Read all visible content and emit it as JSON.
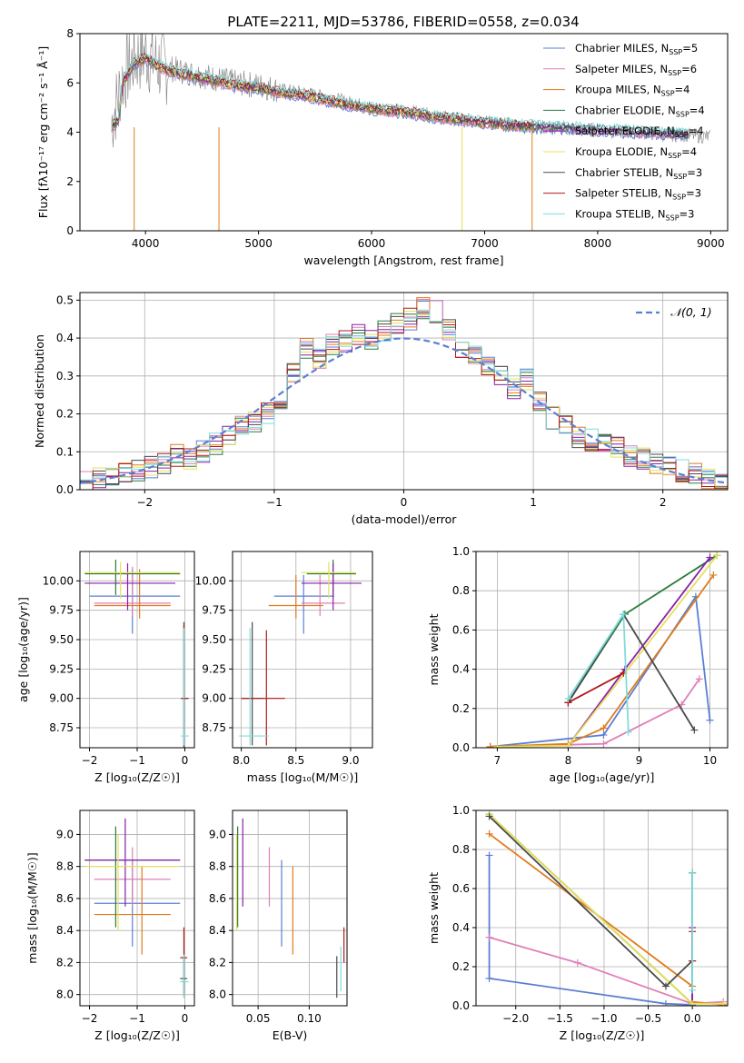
{
  "title": "PLATE=2211, MJD=53786, FIBERID=0558, z=0.034",
  "series": [
    {
      "name": "Chabrier MILES",
      "nssp": "5",
      "color": "#5b7fd3"
    },
    {
      "name": "Salpeter MILES",
      "nssp": "6",
      "color": "#e07fb8"
    },
    {
      "name": "Kroupa MILES",
      "nssp": "4",
      "color": "#e07b1c"
    },
    {
      "name": "Chabrier ELODIE",
      "nssp": "4",
      "color": "#2a7a3a"
    },
    {
      "name": "Salpeter ELODIE",
      "nssp": "4",
      "color": "#8a1fa8"
    },
    {
      "name": "Kroupa ELODIE",
      "nssp": "4",
      "color": "#e6e05a"
    },
    {
      "name": "Chabrier STELIB",
      "nssp": "3",
      "color": "#4a4a4a"
    },
    {
      "name": "Salpeter STELIB",
      "nssp": "3",
      "color": "#b21a1a"
    },
    {
      "name": "Kroupa STELIB",
      "nssp": "3",
      "color": "#7fdcdc"
    }
  ],
  "chart_data": [
    {
      "type": "line",
      "id": "spectrum",
      "xlabel": "wavelength [Angstrom, rest frame]",
      "ylabel": "Flux [fλ10⁻¹⁷ erg cm⁻² s⁻¹ Å⁻¹]",
      "xlim": [
        3420,
        9150
      ],
      "ylim": [
        0,
        8
      ],
      "xticks": [
        4000,
        5000,
        6000,
        7000,
        8000,
        9000
      ],
      "yticks": [
        0,
        2,
        4,
        6,
        8
      ],
      "data_color": "#808080",
      "data_x": [
        3700,
        3800,
        3900,
        4000,
        4100,
        4200,
        4400,
        4600,
        4800,
        5000,
        5200,
        5400,
        5600,
        5800,
        6000,
        6200,
        6400,
        6600,
        6800,
        7000,
        7200,
        7400,
        7600,
        7800,
        8000,
        8200,
        8400,
        8600,
        8800,
        9000
      ],
      "data_y": [
        4.4,
        6.2,
        7.0,
        7.2,
        6.8,
        6.6,
        6.4,
        6.2,
        6.0,
        5.9,
        5.7,
        5.6,
        5.4,
        5.2,
        5.0,
        4.9,
        4.8,
        4.6,
        4.5,
        4.4,
        4.3,
        4.2,
        4.2,
        4.1,
        4.1,
        4.0,
        4.0,
        3.9,
        3.9,
        3.8
      ],
      "model_x": [
        3700,
        3760,
        3800,
        3900,
        4000,
        4100,
        4200,
        4400,
        4600,
        4800,
        5000,
        5200,
        5400,
        5600,
        5800,
        6000,
        6200,
        6400,
        6600,
        6800,
        7000,
        7200,
        7400,
        7600,
        7800,
        8000,
        8200,
        8400,
        8600,
        8800
      ],
      "model_y": [
        4.2,
        4.5,
        6.0,
        6.8,
        7.0,
        6.7,
        6.5,
        6.3,
        6.1,
        5.9,
        5.8,
        5.6,
        5.5,
        5.3,
        5.1,
        4.95,
        4.85,
        4.75,
        4.6,
        4.5,
        4.4,
        4.3,
        4.25,
        4.2,
        4.15,
        4.1,
        4.05,
        4.0,
        3.95,
        3.9
      ]
    },
    {
      "type": "line",
      "id": "residuals",
      "xlabel": "(data-model)/error",
      "ylabel": "Normed distribution",
      "xlim": [
        -2.5,
        2.5
      ],
      "ylim": [
        0,
        0.52
      ],
      "xticks": [
        -2,
        -1,
        0,
        1,
        2
      ],
      "yticks": [
        0.0,
        0.1,
        0.2,
        0.3,
        0.4,
        0.5
      ],
      "legend": "𝒩(0, 1)",
      "bin_edges": [
        -2.5,
        -2.4,
        -2.3,
        -2.2,
        -2.1,
        -2.0,
        -1.9,
        -1.8,
        -1.7,
        -1.6,
        -1.5,
        -1.4,
        -1.3,
        -1.2,
        -1.1,
        -1.0,
        -0.9,
        -0.8,
        -0.7,
        -0.6,
        -0.5,
        -0.4,
        -0.3,
        -0.2,
        -0.1,
        0.0,
        0.1,
        0.2,
        0.3,
        0.4,
        0.5,
        0.6,
        0.7,
        0.8,
        0.9,
        1.0,
        1.1,
        1.2,
        1.3,
        1.4,
        1.5,
        1.6,
        1.7,
        1.8,
        1.9,
        2.0,
        2.1,
        2.2,
        2.3,
        2.4,
        2.5
      ],
      "hist": [
        0.02,
        0.03,
        0.03,
        0.04,
        0.05,
        0.06,
        0.07,
        0.09,
        0.08,
        0.1,
        0.12,
        0.14,
        0.17,
        0.18,
        0.2,
        0.23,
        0.31,
        0.37,
        0.35,
        0.38,
        0.39,
        0.41,
        0.4,
        0.42,
        0.44,
        0.45,
        0.48,
        0.47,
        0.42,
        0.37,
        0.35,
        0.33,
        0.3,
        0.27,
        0.29,
        0.23,
        0.19,
        0.17,
        0.14,
        0.13,
        0.12,
        0.11,
        0.09,
        0.08,
        0.07,
        0.06,
        0.05,
        0.04,
        0.03,
        0.02
      ]
    },
    {
      "type": "scatter",
      "id": "age-vs-Z",
      "xlabel": "Z [log₁₀(Z/Z☉)]",
      "ylabel": "age  [log₁₀(age/yr)]",
      "xlim": [
        -2.2,
        0.2
      ],
      "ylim": [
        8.58,
        10.25
      ],
      "xticks": [
        -2,
        -1,
        0
      ],
      "yticks": [
        8.75,
        9.0,
        9.25,
        9.5,
        9.75,
        10.0
      ],
      "points": [
        {
          "s": 0,
          "x": -1.1,
          "y": 9.87,
          "xl": -2.0,
          "xh": -0.1,
          "yl": 9.55,
          "yh": 10.1
        },
        {
          "s": 1,
          "x": -1.1,
          "y": 9.81,
          "xl": -1.9,
          "xh": -0.3,
          "yl": 9.7,
          "yh": 10.12
        },
        {
          "s": 2,
          "x": -0.95,
          "y": 9.79,
          "xl": -1.9,
          "xh": -0.3,
          "yl": 9.68,
          "yh": 10.1
        },
        {
          "s": 3,
          "x": -1.45,
          "y": 10.06,
          "xl": -2.1,
          "xh": -0.1,
          "yl": 9.88,
          "yh": 10.18
        },
        {
          "s": 4,
          "x": -1.2,
          "y": 9.98,
          "xl": -2.1,
          "xh": -0.2,
          "yl": 9.75,
          "yh": 10.15
        },
        {
          "s": 5,
          "x": -1.35,
          "y": 10.07,
          "xl": -2.1,
          "xh": -0.1,
          "yl": 9.85,
          "yh": 10.16
        },
        {
          "s": 6,
          "x": -0.02,
          "y": 9.0,
          "xl": -0.08,
          "xh": 0.05,
          "yl": 8.58,
          "yh": 9.65
        },
        {
          "s": 7,
          "x": -0.02,
          "y": 9.0,
          "xl": -0.08,
          "xh": 0.08,
          "yl": 8.6,
          "yh": 9.62
        },
        {
          "s": 8,
          "x": -0.02,
          "y": 8.68,
          "xl": -0.08,
          "xh": 0.08,
          "yl": 8.6,
          "yh": 9.6
        }
      ]
    },
    {
      "type": "scatter",
      "id": "age-vs-mass",
      "xlabel": "mass [log₁₀(M/M☉)]",
      "ylabel": "",
      "xlim": [
        7.92,
        9.2
      ],
      "ylim": [
        8.58,
        10.25
      ],
      "xticks": [
        8.0,
        8.5,
        9.0
      ],
      "yticks": [
        8.75,
        9.0,
        9.25,
        9.5,
        9.75,
        10.0
      ],
      "points": [
        {
          "s": 0,
          "x": 8.57,
          "y": 9.87,
          "xl": 8.3,
          "xh": 8.85,
          "yl": 9.55,
          "yh": 10.05
        },
        {
          "s": 1,
          "x": 8.72,
          "y": 9.81,
          "xl": 8.55,
          "xh": 8.95,
          "yl": 9.7,
          "yh": 10.05
        },
        {
          "s": 2,
          "x": 8.5,
          "y": 9.79,
          "xl": 8.25,
          "xh": 8.75,
          "yl": 9.68,
          "yh": 10.05
        },
        {
          "s": 3,
          "x": 8.84,
          "y": 10.06,
          "xl": 8.6,
          "xh": 9.05,
          "yl": 9.88,
          "yh": 10.18
        },
        {
          "s": 4,
          "x": 8.84,
          "y": 9.98,
          "xl": 8.55,
          "xh": 9.1,
          "yl": 9.75,
          "yh": 10.15
        },
        {
          "s": 5,
          "x": 8.8,
          "y": 10.07,
          "xl": 8.55,
          "xh": 9.05,
          "yl": 9.85,
          "yh": 10.16
        },
        {
          "s": 6,
          "x": 8.1,
          "y": 9.0,
          "xl": 8.0,
          "xh": 8.2,
          "yl": 8.6,
          "yh": 9.65
        },
        {
          "s": 7,
          "x": 8.23,
          "y": 9.0,
          "xl": 8.0,
          "xh": 8.4,
          "yl": 8.6,
          "yh": 9.58
        },
        {
          "s": 8,
          "x": 8.08,
          "y": 8.68,
          "xl": 7.98,
          "xh": 8.25,
          "yl": 8.6,
          "yh": 9.6
        }
      ]
    },
    {
      "type": "line",
      "id": "massweight-vs-age",
      "xlabel": "age  [log₁₀(age/yr)]",
      "ylabel": "mass weight",
      "xlim": [
        6.7,
        10.25
      ],
      "ylim": [
        0,
        1
      ],
      "xticks": [
        7,
        8,
        9,
        10
      ],
      "yticks": [
        0.0,
        0.2,
        0.4,
        0.6,
        0.8,
        1.0
      ],
      "lines": [
        {
          "s": 0,
          "x": [
            6.9,
            8.5,
            9.8,
            10.0
          ],
          "y": [
            0.005,
            0.065,
            0.77,
            0.14
          ]
        },
        {
          "s": 1,
          "x": [
            6.9,
            8.5,
            9.6,
            9.85
          ],
          "y": [
            0.005,
            0.02,
            0.22,
            0.35
          ]
        },
        {
          "s": 2,
          "x": [
            6.9,
            8.0,
            8.5,
            10.05
          ],
          "y": [
            0.005,
            0.02,
            0.1,
            0.88
          ]
        },
        {
          "s": 3,
          "x": [
            8.0,
            8.8,
            10.1
          ],
          "y": [
            0.23,
            0.68,
            0.98
          ]
        },
        {
          "s": 4,
          "x": [
            8.0,
            8.8,
            10.0
          ],
          "y": [
            0.01,
            0.4,
            0.97
          ]
        },
        {
          "s": 5,
          "x": [
            7.0,
            8.0,
            10.1
          ],
          "y": [
            0.005,
            0.01,
            0.98
          ]
        },
        {
          "s": 6,
          "x": [
            8.0,
            8.78,
            9.78
          ],
          "y": [
            0.23,
            0.68,
            0.09
          ]
        },
        {
          "s": 7,
          "x": [
            8.0,
            8.78
          ],
          "y": [
            0.23,
            0.38
          ]
        },
        {
          "s": 8,
          "x": [
            8.0,
            8.78,
            8.85
          ],
          "y": [
            0.25,
            0.68,
            0.08
          ]
        }
      ]
    },
    {
      "type": "scatter",
      "id": "mass-vs-Z",
      "xlabel": "Z [log₁₀(Z/Z☉)]",
      "ylabel": "mass [log₁₀(M/M☉)]",
      "xlim": [
        -2.2,
        0.2
      ],
      "ylim": [
        7.93,
        9.15
      ],
      "xticks": [
        -2,
        -1,
        0
      ],
      "yticks": [
        8.0,
        8.2,
        8.4,
        8.6,
        8.8,
        9.0
      ],
      "points": [
        {
          "s": 0,
          "x": -1.1,
          "y": 8.57,
          "xl": -1.9,
          "xh": -0.1,
          "yl": 8.3,
          "yh": 8.84
        },
        {
          "s": 1,
          "x": -1.1,
          "y": 8.72,
          "xl": -1.9,
          "xh": -0.3,
          "yl": 8.55,
          "yh": 8.92
        },
        {
          "s": 2,
          "x": -0.9,
          "y": 8.5,
          "xl": -1.9,
          "xh": -0.3,
          "yl": 8.25,
          "yh": 8.8
        },
        {
          "s": 3,
          "x": -1.45,
          "y": 8.84,
          "xl": -2.1,
          "xh": -0.1,
          "yl": 8.42,
          "yh": 9.05
        },
        {
          "s": 4,
          "x": -1.25,
          "y": 8.84,
          "xl": -2.1,
          "xh": -0.1,
          "yl": 8.55,
          "yh": 9.1
        },
        {
          "s": 5,
          "x": -1.4,
          "y": 8.8,
          "xl": -2.1,
          "xh": -0.1,
          "yl": 8.4,
          "yh": 9.0
        },
        {
          "s": 6,
          "x": -0.02,
          "y": 8.1,
          "xl": -0.1,
          "xh": 0.05,
          "yl": 7.98,
          "yh": 8.24
        },
        {
          "s": 7,
          "x": -0.02,
          "y": 8.23,
          "xl": -0.1,
          "xh": 0.05,
          "yl": 8.0,
          "yh": 8.42
        },
        {
          "s": 8,
          "x": -0.02,
          "y": 8.08,
          "xl": -0.1,
          "xh": 0.08,
          "yl": 7.98,
          "yh": 8.25
        }
      ]
    },
    {
      "type": "scatter",
      "id": "mass-vs-ebv",
      "xlabel": "E(B-V)",
      "ylabel": "",
      "xlim": [
        0.025,
        0.137
      ],
      "ylim": [
        7.93,
        9.15
      ],
      "xticks": [
        0.05,
        0.1
      ],
      "yticks": [
        8.0,
        8.2,
        8.4,
        8.6,
        8.8,
        9.0
      ],
      "points": [
        {
          "s": 0,
          "x": 0.073,
          "y": 8.57,
          "xl": 0.073,
          "xh": 0.073,
          "yl": 8.3,
          "yh": 8.84
        },
        {
          "s": 1,
          "x": 0.061,
          "y": 8.72,
          "xl": 0.061,
          "xh": 0.061,
          "yl": 8.55,
          "yh": 8.92
        },
        {
          "s": 2,
          "x": 0.084,
          "y": 8.5,
          "xl": 0.084,
          "xh": 0.084,
          "yl": 8.25,
          "yh": 8.8
        },
        {
          "s": 3,
          "x": 0.03,
          "y": 8.84,
          "xl": 0.03,
          "xh": 0.03,
          "yl": 8.42,
          "yh": 9.05
        },
        {
          "s": 4,
          "x": 0.035,
          "y": 8.84,
          "xl": 0.035,
          "xh": 0.035,
          "yl": 8.55,
          "yh": 9.1
        },
        {
          "s": 5,
          "x": 0.029,
          "y": 8.8,
          "xl": 0.029,
          "xh": 0.029,
          "yl": 8.4,
          "yh": 9.0
        },
        {
          "s": 6,
          "x": 0.127,
          "y": 8.1,
          "xl": 0.127,
          "xh": 0.127,
          "yl": 7.98,
          "yh": 8.24
        },
        {
          "s": 7,
          "x": 0.134,
          "y": 8.23,
          "xl": 0.134,
          "xh": 0.134,
          "yl": 8.2,
          "yh": 8.42
        },
        {
          "s": 8,
          "x": 0.131,
          "y": 8.08,
          "xl": 0.131,
          "xh": 0.131,
          "yl": 8.02,
          "yh": 8.3
        }
      ]
    },
    {
      "type": "line",
      "id": "massweight-vs-Z",
      "xlabel": "Z [log₁₀(Z/Z☉)]",
      "ylabel": "mass weight",
      "xlim": [
        -2.45,
        0.4
      ],
      "ylim": [
        0,
        1
      ],
      "xticks": [
        -2.0,
        -1.5,
        -1.0,
        -0.5,
        0.0
      ],
      "yticks": [
        0.0,
        0.2,
        0.4,
        0.6,
        0.8,
        1.0
      ],
      "lines": [
        {
          "s": 0,
          "x": [
            -2.3,
            -2.3,
            -0.3,
            0.0
          ],
          "y": [
            0.77,
            0.14,
            0.01,
            0.005
          ]
        },
        {
          "s": 1,
          "x": [
            -2.3,
            -1.3,
            0.0,
            0.35
          ],
          "y": [
            0.35,
            0.22,
            0.01,
            0.02
          ]
        },
        {
          "s": 2,
          "x": [
            -2.3,
            0.0,
            0.0,
            0.35
          ],
          "y": [
            0.88,
            0.1,
            0.02,
            0.005
          ]
        },
        {
          "s": 3,
          "x": [
            -2.3,
            0.0,
            0.0
          ],
          "y": [
            0.98,
            0.01,
            0.68
          ]
        },
        {
          "s": 4,
          "x": [
            0.0,
            0.0,
            0.0
          ],
          "y": [
            0.01,
            0.4,
            0.23
          ]
        },
        {
          "s": 5,
          "x": [
            -2.3,
            0.0,
            0.35
          ],
          "y": [
            0.98,
            0.01,
            0.01
          ]
        },
        {
          "s": 6,
          "x": [
            -2.3,
            -0.3,
            0.0,
            0.0
          ],
          "y": [
            0.97,
            0.1,
            0.23,
            0.68
          ]
        },
        {
          "s": 7,
          "x": [
            0.0,
            0.0
          ],
          "y": [
            0.23,
            0.38
          ]
        },
        {
          "s": 8,
          "x": [
            0.0,
            0.0
          ],
          "y": [
            0.08,
            0.68
          ]
        }
      ]
    }
  ]
}
